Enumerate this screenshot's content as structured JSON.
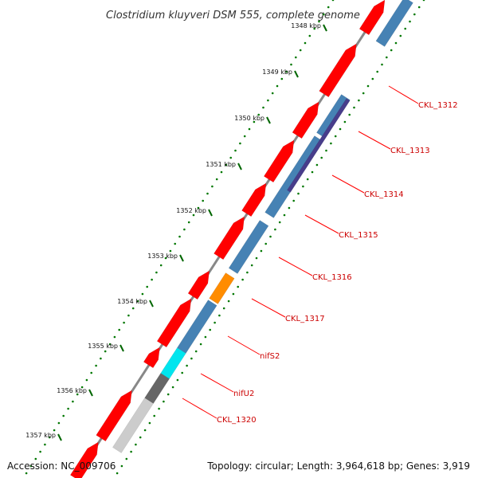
{
  "title": "Clostridium kluyveri DSM 555, complete genome",
  "footer": {
    "accession": "Accession: NC_009706",
    "summary": "Topology: circular; Length: 3,964,618 bp; Genes: 3,919"
  },
  "ticks": [
    "1348 kbp",
    "1349 kbp",
    "1350 kbp",
    "1351 kbp",
    "1352 kbp",
    "1353 kbp",
    "1354 kbp",
    "1355 kbp",
    "1356 kbp",
    "1357 kbp"
  ],
  "gene_labels": [
    "CKL_1312",
    "CKL_1313",
    "CKL_1314",
    "CKL_1315",
    "CKL_1316",
    "CKL_1317",
    "nifS2",
    "nifU2",
    "CKL_1320"
  ],
  "colors": {
    "cds": "#ff0000",
    "gene": "#4682b4",
    "highlight_dark": "#483d8b",
    "orange": "#ff8c00",
    "cyan": "#00e5ee",
    "dark_gray": "#666666",
    "light_gray": "#cccccc",
    "backbone": "#888888",
    "gc_dots": "#007700"
  }
}
